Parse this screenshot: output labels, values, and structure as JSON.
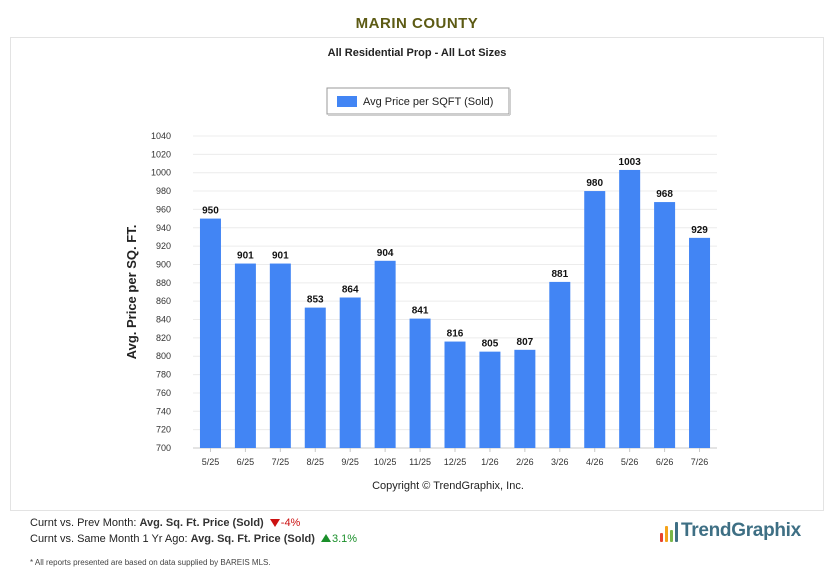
{
  "page": {
    "title": "MARIN COUNTY"
  },
  "chart_data": {
    "type": "bar",
    "title": "All Residential Prop - All Lot Sizes",
    "ylabel": "Avg. Price per SQ. FT.",
    "xlabel": "",
    "credit": "Copyright © TrendGraphix, Inc.",
    "legend_position": "top-center",
    "grid": true,
    "ylim": [
      700,
      1040
    ],
    "ytick_step": 20,
    "yticks": [
      "700",
      "720",
      "740",
      "760",
      "780",
      "800",
      "820",
      "840",
      "860",
      "880",
      "900",
      "920",
      "940",
      "960",
      "980",
      "1000",
      "1020",
      "1040"
    ],
    "categories": [
      "5/25",
      "6/25",
      "7/25",
      "8/25",
      "9/25",
      "10/25",
      "11/25",
      "12/25",
      "1/26",
      "2/26",
      "3/26",
      "4/26",
      "5/26",
      "6/26",
      "7/26"
    ],
    "series": [
      {
        "name": "Avg Price per SQFT (Sold)",
        "color": "#4285f4",
        "values": [
          950,
          901,
          901,
          853,
          864,
          904,
          841,
          816,
          805,
          807,
          881,
          980,
          1003,
          968,
          929
        ]
      }
    ]
  },
  "footer": {
    "prev_month_prefix": "Curnt vs. Prev Month:",
    "prev_month_metric": "Avg. Sq. Ft. Price (Sold)",
    "prev_month_change": "-4%",
    "year_ago_prefix": "Curnt vs. Same Month 1 Yr Ago:",
    "year_ago_metric": "Avg. Sq. Ft. Price (Sold)",
    "year_ago_change": "3.1%",
    "note": "* All reports presented are based on data supplied by BAREIS MLS.",
    "brand": "TrendGraphix"
  },
  "colors": {
    "bar": "#4285f4",
    "title": "#5c5a13",
    "negative": "#cc1111",
    "positive": "#1a8f2a",
    "brand_text": "#3e6f84"
  }
}
